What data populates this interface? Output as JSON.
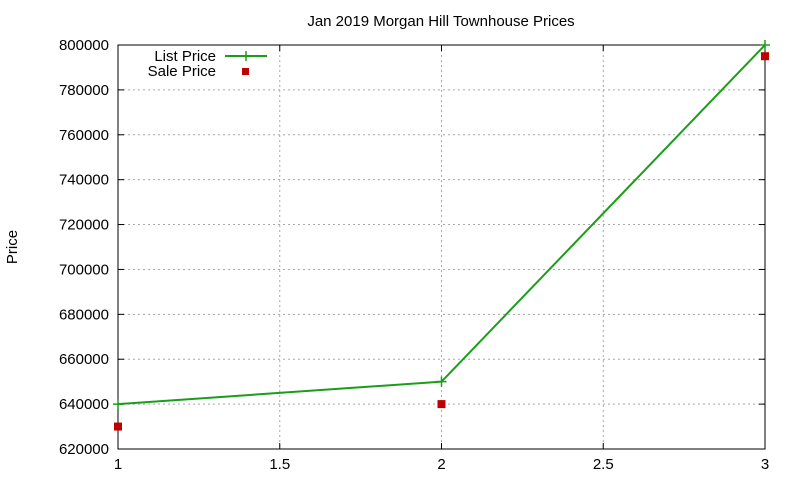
{
  "chart_data": {
    "type": "line",
    "title": "Jan 2019 Morgan Hill Townhouse Prices",
    "xlabel": "",
    "ylabel": "Price",
    "xlim": [
      1,
      3
    ],
    "ylim": [
      620000,
      800000
    ],
    "x_ticks": [
      "1",
      "1.5",
      "2",
      "2.5",
      "3"
    ],
    "y_ticks": [
      "620000",
      "640000",
      "660000",
      "680000",
      "700000",
      "720000",
      "740000",
      "760000",
      "780000",
      "800000"
    ],
    "grid": true,
    "legend_position": "top-left",
    "series": [
      {
        "name": "List Price",
        "style": "line-with-plus-markers",
        "color": "#1a9e1a",
        "x": [
          1,
          2,
          3
        ],
        "y": [
          640000,
          650000,
          800000
        ]
      },
      {
        "name": "Sale Price",
        "style": "square-markers",
        "color": "#c00000",
        "x": [
          1,
          2,
          3
        ],
        "y": [
          630000,
          640000,
          795000
        ]
      }
    ]
  }
}
